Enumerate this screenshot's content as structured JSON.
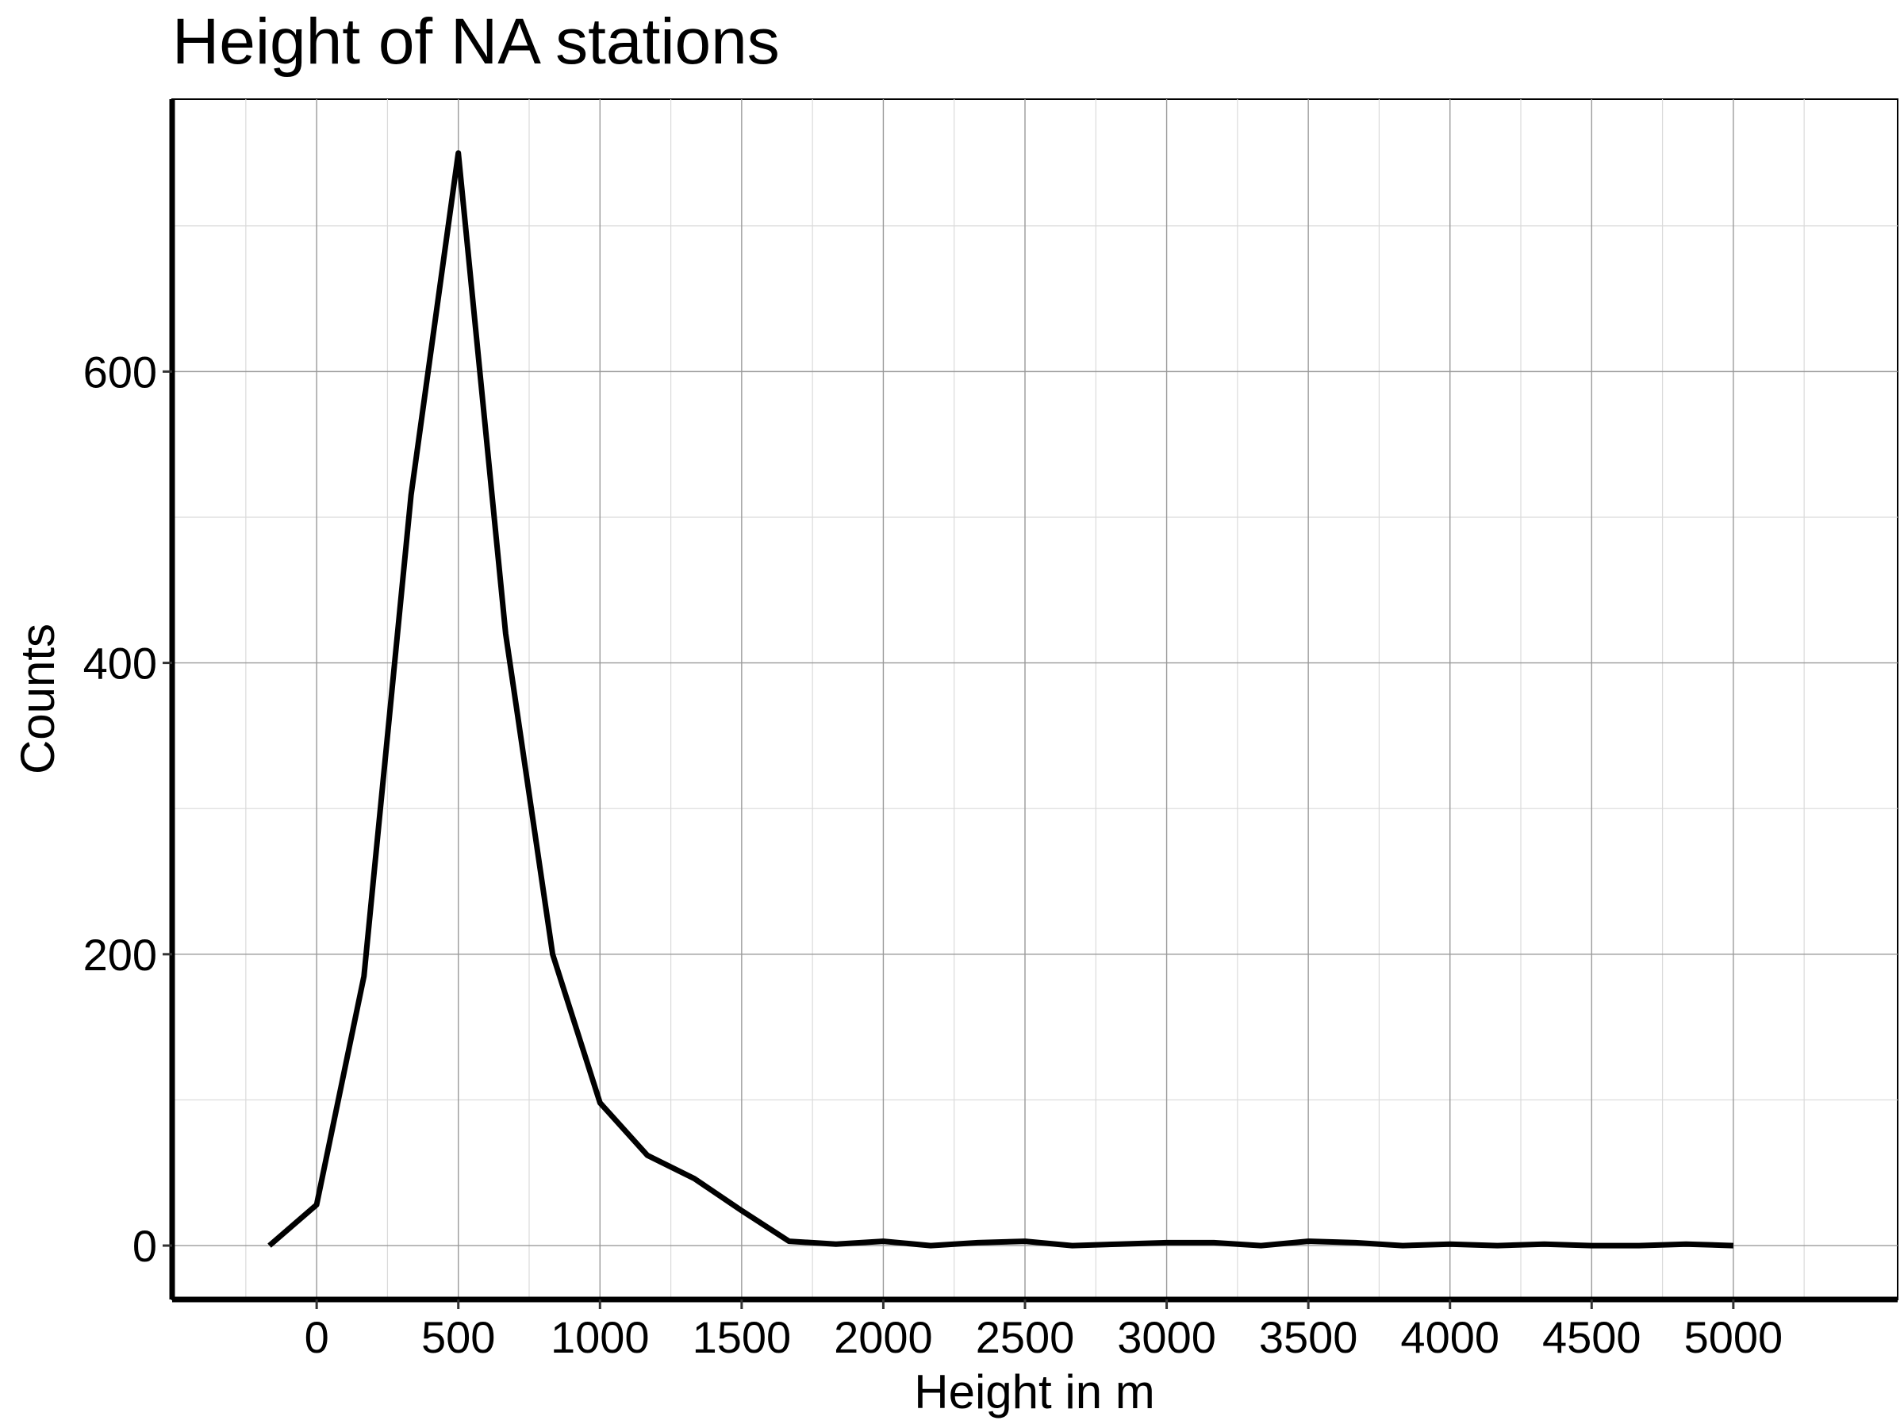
{
  "chart_data": {
    "type": "line",
    "title": "Height of NA stations",
    "xlabel": "Height in m",
    "ylabel": "Counts",
    "x_ticks": [
      0,
      500,
      1000,
      1500,
      2000,
      2500,
      3000,
      3500,
      4000,
      4500,
      5000
    ],
    "x_tick_labels": [
      "0",
      "500",
      "1000",
      "1500",
      "2000",
      "2500",
      "3000",
      "3500",
      "4000",
      "4500",
      "5000"
    ],
    "y_ticks": [
      0,
      200,
      400,
      600
    ],
    "y_tick_labels": [
      "0",
      "200",
      "400",
      "600"
    ],
    "xlim": [
      -510,
      5580
    ],
    "ylim": [
      -37,
      787
    ],
    "grid": true,
    "line_color": "#000000",
    "series": [
      {
        "name": "Counts",
        "x": [
          -167,
          0,
          167,
          333,
          500,
          667,
          833,
          1000,
          1167,
          1333,
          1500,
          1667,
          1833,
          2000,
          2167,
          2333,
          2500,
          2667,
          2833,
          3000,
          3167,
          3333,
          3500,
          3667,
          3833,
          4000,
          4167,
          4333,
          4500,
          4667,
          4833,
          5000
        ],
        "values": [
          0,
          28,
          185,
          515,
          750,
          420,
          200,
          98,
          62,
          46,
          24,
          3,
          1,
          3,
          0,
          2,
          3,
          0,
          1,
          2,
          2,
          0,
          3,
          2,
          0,
          1,
          0,
          1,
          0,
          0,
          1,
          0
        ]
      }
    ]
  }
}
